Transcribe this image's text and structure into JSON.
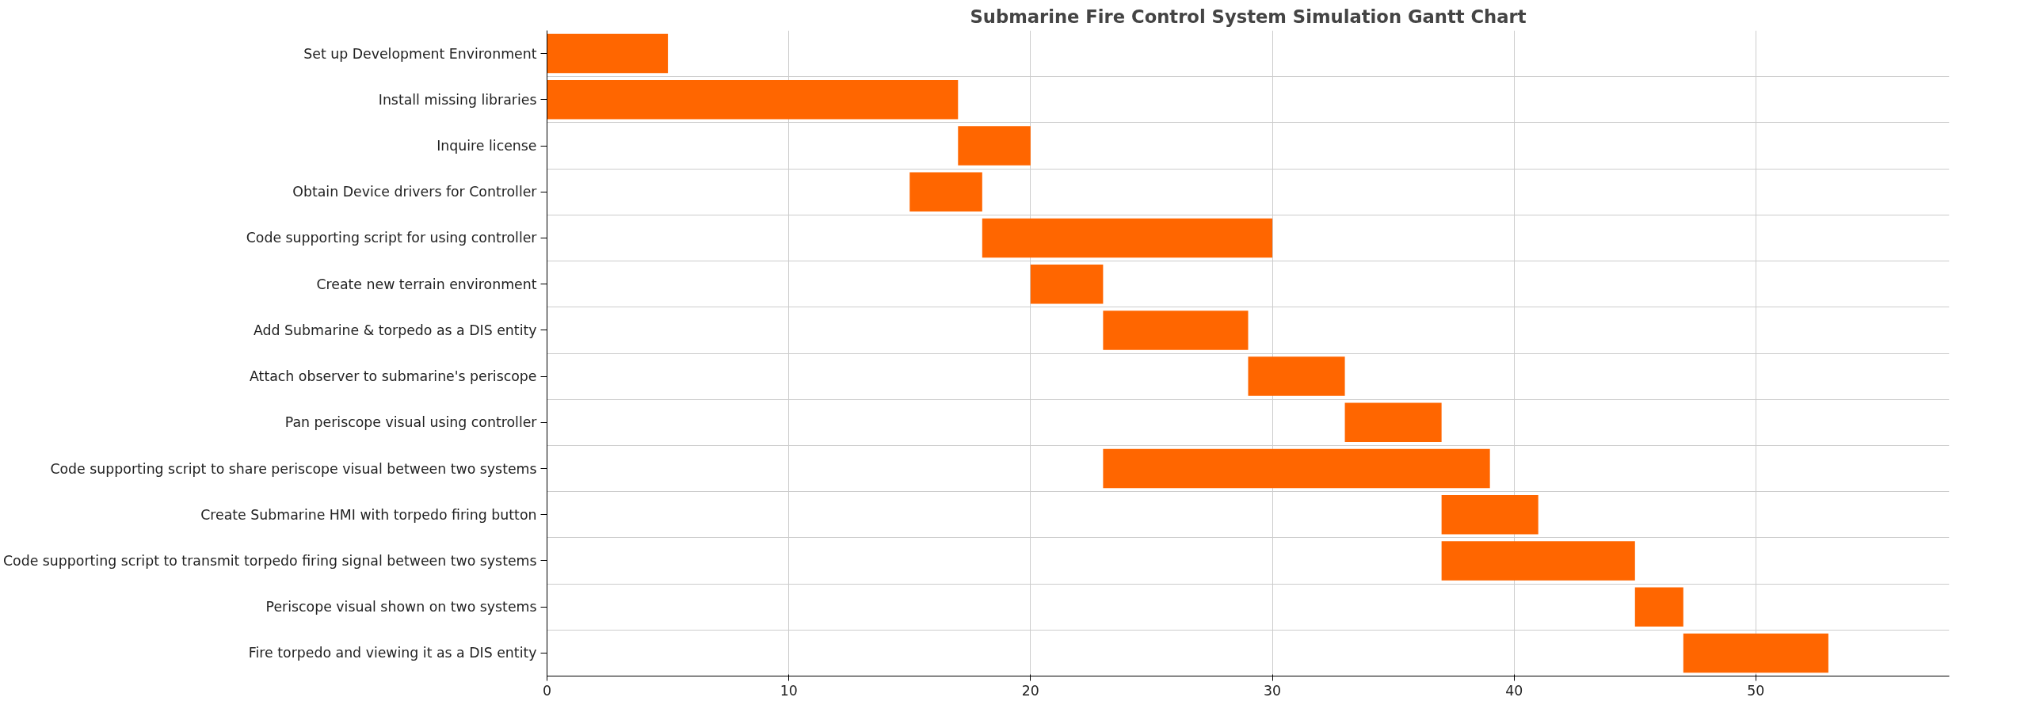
{
  "chart_data": {
    "type": "bar",
    "orientation": "horizontal",
    "title": "Submarine Fire Control System Simulation Gantt Chart",
    "categories": [
      "Set up Development Environment",
      "Install missing libraries",
      "Inquire license",
      "Obtain Device drivers for Controller",
      "Code supporting script for using controller",
      "Create new terrain environment",
      "Add Submarine & torpedo as a DIS entity",
      "Attach observer to submarine's periscope",
      "Pan periscope visual using controller",
      "Code supporting script to share periscope visual between two systems",
      "Create Submarine HMI with torpedo firing button",
      "Code supporting script to transmit torpedo firing signal between two systems",
      "Periscope visual shown on two systems",
      "Fire torpedo and viewing it as a DIS entity"
    ],
    "base": [
      0,
      0,
      17,
      15,
      18,
      20,
      23,
      29,
      33,
      23,
      37,
      37,
      45,
      47
    ],
    "values": [
      5,
      17,
      3,
      3,
      12,
      3,
      6,
      4,
      4,
      16,
      4,
      8,
      2,
      6
    ],
    "color": "#ff6600",
    "xlim": [
      0,
      58
    ],
    "xticks": [
      0,
      10,
      20,
      30,
      40,
      50
    ],
    "grid": true
  }
}
